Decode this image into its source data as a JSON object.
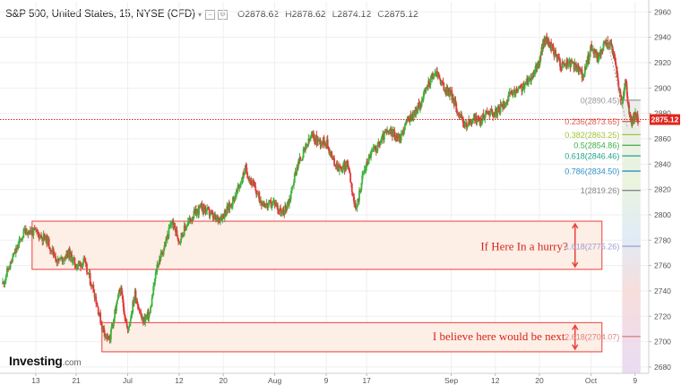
{
  "header": {
    "title": "S&P 500, United States, 15, NYSE (CFD)",
    "open_label": "O",
    "open": "2878.62",
    "high_label": "H",
    "high": "2878.62",
    "low_label": "L",
    "low": "2874.12",
    "close_label": "C",
    "close": "2875.12"
  },
  "logo": {
    "name": "Investing",
    "suffix": ".com"
  },
  "chart_data": {
    "type": "line",
    "title": "S&P 500, United States, 15, NYSE (CFD)",
    "ylim": [
      2675,
      2968
    ],
    "y_ticks": [
      2680,
      2700,
      2720,
      2740,
      2760,
      2780,
      2800,
      2820,
      2840,
      2860,
      2880,
      2900,
      2920,
      2940,
      2960
    ],
    "x_ticks": [
      {
        "label": "13",
        "x": 0.09
      },
      {
        "label": "21",
        "x": 0.2
      },
      {
        "label": "Jul",
        "x": 0.34
      },
      {
        "label": "12",
        "x": 0.48
      },
      {
        "label": "20",
        "x": 0.6
      },
      {
        "label": "Aug",
        "x": 0.74
      },
      {
        "label": "9",
        "x": 0.88
      },
      {
        "label": "17",
        "x": 0.99
      },
      {
        "label": "Sep",
        "x": 1.22
      },
      {
        "label": "12",
        "x": 1.34
      },
      {
        "label": "20",
        "x": 1.46
      },
      {
        "label": "Oct",
        "x": 1.6
      },
      {
        "label": "9",
        "x": 1.72
      }
    ],
    "x_range": [
      0,
      1.75
    ],
    "series": [
      {
        "points": [
          [
            0.0,
            2746
          ],
          [
            0.03,
            2768
          ],
          [
            0.06,
            2788
          ],
          [
            0.09,
            2786
          ],
          [
            0.12,
            2780
          ],
          [
            0.15,
            2763
          ],
          [
            0.18,
            2770
          ],
          [
            0.2,
            2760
          ],
          [
            0.22,
            2763
          ],
          [
            0.25,
            2738
          ],
          [
            0.27,
            2712
          ],
          [
            0.29,
            2700
          ],
          [
            0.305,
            2722
          ],
          [
            0.32,
            2742
          ],
          [
            0.34,
            2708
          ],
          [
            0.36,
            2738
          ],
          [
            0.38,
            2716
          ],
          [
            0.4,
            2722
          ],
          [
            0.42,
            2760
          ],
          [
            0.44,
            2775
          ],
          [
            0.46,
            2795
          ],
          [
            0.48,
            2780
          ],
          [
            0.5,
            2792
          ],
          [
            0.52,
            2800
          ],
          [
            0.54,
            2806
          ],
          [
            0.56,
            2802
          ],
          [
            0.58,
            2796
          ],
          [
            0.6,
            2800
          ],
          [
            0.62,
            2808
          ],
          [
            0.64,
            2820
          ],
          [
            0.66,
            2836
          ],
          [
            0.68,
            2824
          ],
          [
            0.7,
            2812
          ],
          [
            0.72,
            2807
          ],
          [
            0.74,
            2810
          ],
          [
            0.76,
            2800
          ],
          [
            0.78,
            2812
          ],
          [
            0.8,
            2838
          ],
          [
            0.82,
            2850
          ],
          [
            0.84,
            2862
          ],
          [
            0.86,
            2858
          ],
          [
            0.88,
            2858
          ],
          [
            0.9,
            2842
          ],
          [
            0.92,
            2836
          ],
          [
            0.94,
            2840
          ],
          [
            0.96,
            2802
          ],
          [
            0.98,
            2832
          ],
          [
            1.0,
            2848
          ],
          [
            1.02,
            2854
          ],
          [
            1.04,
            2864
          ],
          [
            1.06,
            2865
          ],
          [
            1.08,
            2860
          ],
          [
            1.1,
            2874
          ],
          [
            1.12,
            2880
          ],
          [
            1.14,
            2890
          ],
          [
            1.16,
            2905
          ],
          [
            1.18,
            2913
          ],
          [
            1.2,
            2900
          ],
          [
            1.22,
            2895
          ],
          [
            1.24,
            2880
          ],
          [
            1.26,
            2870
          ],
          [
            1.28,
            2876
          ],
          [
            1.3,
            2874
          ],
          [
            1.32,
            2882
          ],
          [
            1.34,
            2880
          ],
          [
            1.36,
            2886
          ],
          [
            1.38,
            2894
          ],
          [
            1.4,
            2898
          ],
          [
            1.42,
            2902
          ],
          [
            1.44,
            2910
          ],
          [
            1.46,
            2920
          ],
          [
            1.47,
            2935
          ],
          [
            1.48,
            2938
          ],
          [
            1.5,
            2928
          ],
          [
            1.52,
            2918
          ],
          [
            1.54,
            2920
          ],
          [
            1.56,
            2916
          ],
          [
            1.58,
            2910
          ],
          [
            1.6,
            2932
          ],
          [
            1.62,
            2924
          ],
          [
            1.64,
            2936
          ],
          [
            1.655,
            2933
          ],
          [
            1.665,
            2925
          ],
          [
            1.675,
            2902
          ],
          [
            1.685,
            2885
          ],
          [
            1.695,
            2907
          ],
          [
            1.7,
            2890
          ],
          [
            1.71,
            2872
          ],
          [
            1.72,
            2880
          ],
          [
            1.728,
            2875
          ]
        ]
      }
    ],
    "current_price": {
      "label": "2875.12",
      "value": 2875.12
    },
    "fib_levels": [
      {
        "label": "0(2890.45)",
        "value": 2890.45,
        "color": "#999999"
      },
      {
        "label": "0.236(2873.65)",
        "value": 2873.65,
        "color": "#e05a4e"
      },
      {
        "label": "0.382(2863.25)",
        "value": 2863.25,
        "color": "#a3c43b"
      },
      {
        "label": "0.5(2854.86)",
        "value": 2854.86,
        "color": "#3fae4a"
      },
      {
        "label": "0.618(2846.46)",
        "value": 2846.46,
        "color": "#20a58a"
      },
      {
        "label": "0.786(2834.50)",
        "value": 2834.5,
        "color": "#2e8fc9"
      },
      {
        "label": "1(2819.26)",
        "value": 2819.26,
        "color": "#888888"
      },
      {
        "label": "1.618(2775.26)",
        "value": 2775.26,
        "color": "#9e9ccf"
      },
      {
        "label": "2.618(2704.07)",
        "value": 2704.07,
        "color": "#d98585"
      }
    ],
    "annotations": [
      {
        "text": "If Here In a hurry?",
        "value": 2775,
        "x_from": 0.08,
        "x_to": 1.63,
        "y_low": 2757,
        "y_high": 2795
      },
      {
        "text": "I believe here would be next.",
        "value": 2704,
        "x_from": 0.27,
        "x_to": 1.63,
        "y_low": 2692,
        "y_high": 2715
      }
    ],
    "colors": {
      "up": "#3db33d",
      "down": "#e03a3a",
      "zone_fill": "#fdeee6",
      "zone_border": "#e8413c",
      "text_red": "#d4251d",
      "axis_text": "#555555",
      "grid": "#efefef",
      "price_tag": "#e0261c"
    }
  }
}
